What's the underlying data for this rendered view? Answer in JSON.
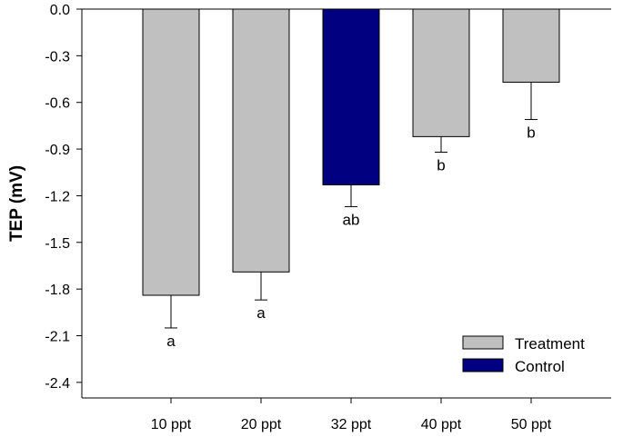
{
  "chart_data": {
    "type": "bar",
    "title": "",
    "xlabel": "",
    "ylabel": "TEP (mV)",
    "ylim": [
      -2.5,
      0
    ],
    "yticks": [
      0.0,
      -0.3,
      -0.6,
      -0.9,
      -1.2,
      -1.5,
      -1.8,
      -2.1,
      -2.4
    ],
    "ytick_labels": [
      "0.0",
      "-0.3",
      "-0.6",
      "-0.9",
      "-1.2",
      "-1.5",
      "-1.8",
      "-2.1",
      "-2.4"
    ],
    "categories": [
      "10 ppt",
      "20 ppt",
      "32 ppt",
      "40 ppt",
      "50 ppt"
    ],
    "values": [
      -1.84,
      -1.69,
      -1.13,
      -0.82,
      -0.47
    ],
    "errors": [
      0.21,
      0.18,
      0.14,
      0.1,
      0.24
    ],
    "groups": [
      "Treatment",
      "Treatment",
      "Control",
      "Treatment",
      "Treatment"
    ],
    "significance_labels": [
      "a",
      "a",
      "ab",
      "b",
      "b"
    ],
    "legend": {
      "placement": "bottom-right",
      "entries": [
        {
          "label": "Treatment",
          "color": "#c0c0c0"
        },
        {
          "label": "Control",
          "color": "#000080"
        }
      ]
    },
    "grid": false
  }
}
